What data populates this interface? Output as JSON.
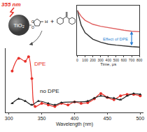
{
  "chart_data": [
    {
      "type": "line",
      "x_label": "Wavelength (nm)",
      "xlim": [
        295,
        505
      ],
      "xticks": [
        300,
        350,
        400,
        450,
        500
      ],
      "ylim": [
        0,
        0.85
      ],
      "yticks": [],
      "tick_labels": "x",
      "series": [
        {
          "name": "DPE",
          "color": "#e8312a",
          "marker": "circle",
          "x": [
            305,
            315,
            325,
            330,
            335,
            340,
            350,
            360,
            370,
            380,
            390,
            400,
            410,
            420,
            430,
            440,
            450,
            460,
            470,
            480,
            490,
            500
          ],
          "values": [
            0.55,
            0.72,
            0.68,
            0.74,
            0.45,
            0.08,
            0.12,
            0.1,
            0.08,
            0.12,
            0.1,
            0.14,
            0.12,
            0.13,
            0.18,
            0.25,
            0.2,
            0.17,
            0.22,
            0.24,
            0.24,
            0.22
          ]
        },
        {
          "name": "no DPE",
          "color": "#222222",
          "marker": "triangle-up",
          "x": [
            305,
            315,
            325,
            335,
            345,
            360,
            370,
            380,
            400,
            420,
            430,
            440,
            450,
            460,
            470,
            480,
            490,
            500
          ],
          "values": [
            0.12,
            0.18,
            0.15,
            0.1,
            0.15,
            0.12,
            0.1,
            0.13,
            0.14,
            0.15,
            0.19,
            0.22,
            0.2,
            0.19,
            0.17,
            0.22,
            0.25,
            0.24
          ]
        }
      ]
    },
    {
      "type": "line",
      "x_label": "Time, μs",
      "xlim": [
        0,
        800
      ],
      "xticks": [
        0,
        100,
        200,
        300,
        400,
        500,
        600,
        700,
        800
      ],
      "ylim": [
        0,
        1
      ],
      "yticks": [],
      "tick_labels": "x",
      "x": [
        0,
        50,
        100,
        200,
        300,
        400,
        500,
        600,
        700,
        800
      ],
      "series": [
        {
          "color": "#e06060",
          "values": [
            0.9,
            0.78,
            0.7,
            0.62,
            0.58,
            0.55,
            0.53,
            0.5,
            0.48,
            0.47
          ]
        },
        {
          "color": "#333333",
          "values": [
            0.9,
            0.6,
            0.45,
            0.32,
            0.26,
            0.22,
            0.2,
            0.18,
            0.17,
            0.16
          ]
        }
      ],
      "annotation": {
        "text": "Effect of DPE",
        "color": "#2a7fd4"
      }
    }
  ],
  "scheme": {
    "laser": "355 nm",
    "particle": "TiO₂",
    "atoms": [
      "O",
      "O",
      "H"
    ],
    "plus": "+"
  }
}
